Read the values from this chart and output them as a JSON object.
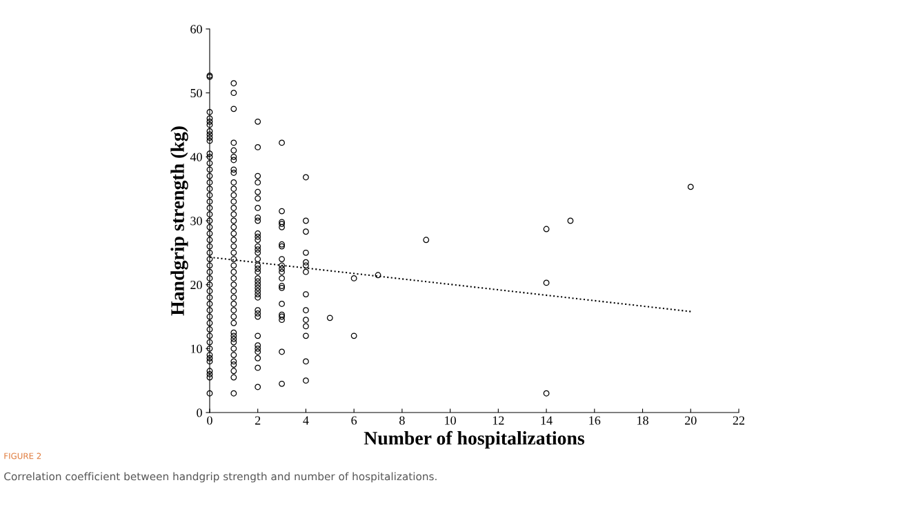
{
  "chart_data": {
    "type": "scatter",
    "xlabel": "Number of hospitalizations",
    "ylabel": "Handgrip strength (kg)",
    "xlim": [
      0,
      22
    ],
    "xticks": [
      0,
      2,
      4,
      6,
      8,
      10,
      12,
      14,
      16,
      18,
      20,
      22
    ],
    "ylim": [
      0,
      60
    ],
    "yticks": [
      0,
      10,
      20,
      30,
      40,
      50,
      60
    ],
    "grid": false,
    "legend": false,
    "marker": "circle",
    "series": [
      {
        "color": "#000000",
        "x": [
          0,
          0,
          0,
          0,
          0,
          0,
          0,
          0,
          0,
          0,
          0,
          0,
          0,
          0,
          0,
          0,
          0,
          0,
          0,
          0,
          0,
          0,
          0,
          0,
          0,
          0,
          0,
          0,
          0,
          0,
          0,
          0,
          0,
          0,
          0,
          0,
          0,
          0,
          0,
          0,
          0,
          0,
          0,
          0,
          0,
          0,
          0,
          0,
          0
        ],
        "values": [
          52.7,
          52.5,
          47,
          46,
          45.5,
          45,
          44,
          43.5,
          43,
          42.5,
          40.5,
          40,
          39,
          38,
          37,
          36,
          35,
          34,
          33,
          32,
          31,
          30,
          29,
          28,
          27,
          26,
          25,
          24,
          23,
          22,
          21,
          20,
          19,
          18,
          17,
          16,
          15,
          14,
          13,
          12,
          11,
          10,
          9,
          8.5,
          8,
          6.5,
          6,
          5.5,
          3
        ]
      },
      {
        "color": "#000000",
        "x": [
          1,
          1,
          1,
          1,
          1,
          1,
          1,
          1,
          1,
          1,
          1,
          1,
          1,
          1,
          1,
          1,
          1,
          1,
          1,
          1,
          1,
          1,
          1,
          1,
          1,
          1,
          1,
          1,
          1,
          1,
          1,
          1,
          1,
          1,
          1,
          1,
          1,
          1,
          1,
          1,
          1,
          1,
          1
        ],
        "values": [
          51.5,
          50,
          47.5,
          42.2,
          41,
          40,
          39.5,
          38,
          37.5,
          36,
          35,
          34,
          33,
          32,
          31,
          30,
          29,
          28,
          27,
          26,
          25,
          24,
          23,
          22,
          21,
          20,
          19,
          18,
          17,
          16,
          15,
          14,
          12.5,
          12,
          11.5,
          11,
          10,
          9,
          8,
          7.5,
          6.5,
          5.5,
          3
        ]
      },
      {
        "color": "#000000",
        "x": [
          2,
          2,
          2,
          2,
          2,
          2,
          2,
          2,
          2,
          2,
          2,
          2,
          2,
          2,
          2,
          2,
          2,
          2,
          2,
          2,
          2,
          2,
          2,
          2,
          2,
          2,
          2,
          2,
          2,
          2,
          2,
          2,
          2,
          2,
          2,
          2
        ],
        "values": [
          45.5,
          41.5,
          37,
          36,
          34.5,
          33.5,
          32,
          30.5,
          30,
          28,
          27.5,
          27,
          26,
          25.5,
          25,
          24,
          23,
          22.5,
          22,
          21,
          20.5,
          20,
          19.5,
          19,
          18.5,
          18,
          16,
          15.5,
          15,
          12,
          10.5,
          10,
          9.5,
          8.5,
          7,
          4
        ]
      },
      {
        "color": "#000000",
        "x": [
          3,
          3,
          3,
          3,
          3,
          3,
          3,
          3,
          3,
          3,
          3,
          3,
          3,
          3,
          3,
          3,
          3,
          3,
          3,
          3
        ],
        "values": [
          42.2,
          31.5,
          29.8,
          29.5,
          29,
          26.3,
          26,
          24,
          23,
          22.5,
          22,
          21,
          19.8,
          19.5,
          17,
          15.3,
          15,
          14.5,
          9.5,
          4.5
        ]
      },
      {
        "color": "#000000",
        "x": [
          4,
          4,
          4,
          4,
          4,
          4,
          4,
          4,
          4,
          4,
          4,
          4,
          4,
          4
        ],
        "values": [
          36.8,
          30,
          28.3,
          25,
          23.5,
          23,
          22,
          18.5,
          16,
          14.5,
          13.5,
          12,
          8,
          5
        ]
      },
      {
        "color": "#000000",
        "x": [
          5,
          6,
          6,
          7,
          9,
          14,
          14,
          14,
          15,
          20
        ],
        "values": [
          14.8,
          21,
          12,
          21.5,
          27,
          28.7,
          20.3,
          3,
          30,
          35.3
        ]
      },
      {
        "type": "line",
        "color": "#000000",
        "line_style": "dotted",
        "marker": "none",
        "x": [
          0,
          20
        ],
        "values": [
          24.3,
          15.8
        ]
      }
    ],
    "annotations": [
      "FIGURE 2",
      "Correlation coefficient between handgrip strength and number of hospitalizations."
    ]
  }
}
